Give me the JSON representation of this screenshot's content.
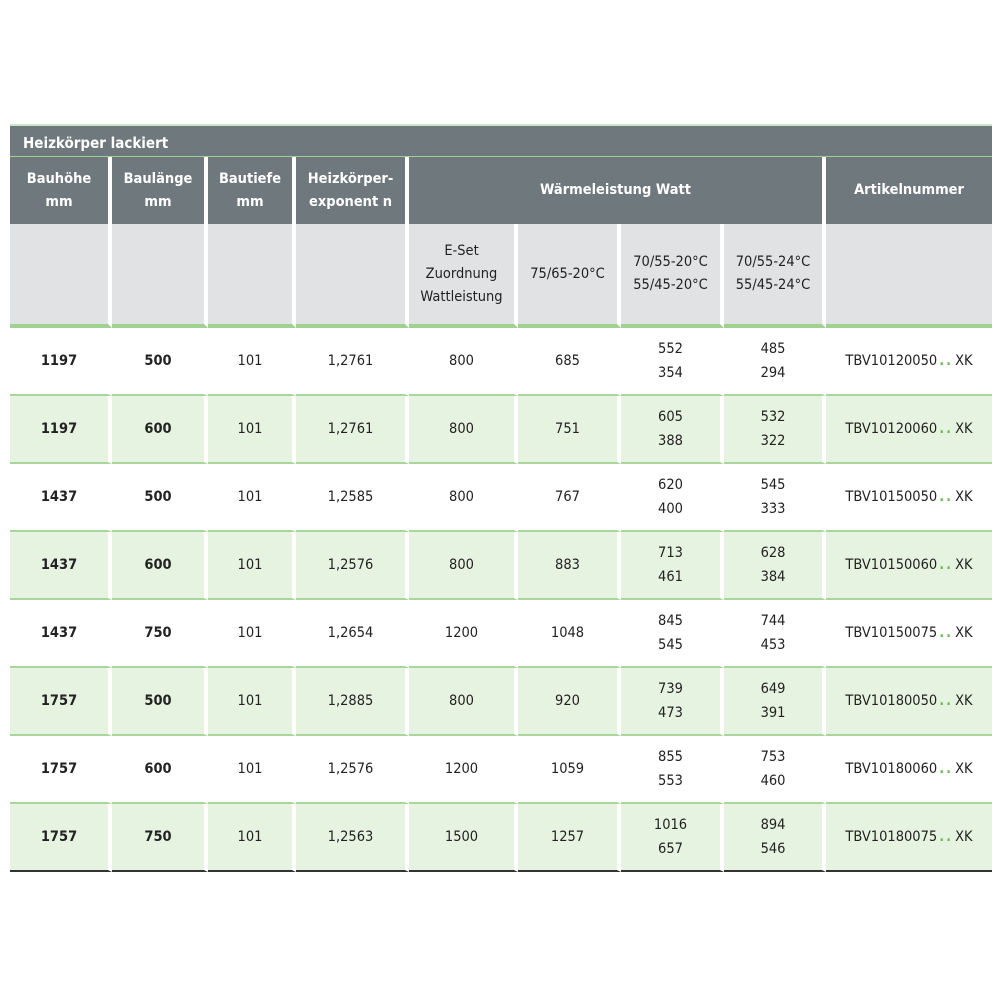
{
  "title": "Heizkörper lackiert",
  "headers": {
    "bauhoehe": [
      "Bauhöhe",
      "mm"
    ],
    "baulaenge": [
      "Baulänge",
      "mm"
    ],
    "bautiefe": [
      "Bautiefe",
      "mm"
    ],
    "exponent": [
      "Heizkörper-",
      "exponent n"
    ],
    "waermeleistung": "Wärmeleistung Watt",
    "artikelnummer": "Artikelnummer"
  },
  "subheaders": {
    "eset": [
      "E-Set",
      "Zuordnung",
      "Wattleistung"
    ],
    "t1": "75/65-20°C",
    "t2": [
      "70/55-20°C",
      "55/45-20°C"
    ],
    "t3": [
      "70/55-24°C",
      "55/45-24°C"
    ]
  },
  "colors": {
    "header": "#6f787c",
    "subheader": "#e1e2e4",
    "accent": "#9fd18f",
    "row_alt": "#e6f3e1",
    "dots": "#6cbf55"
  },
  "rows": [
    {
      "h": "1197",
      "l": "500",
      "t": "101",
      "n": "1,2761",
      "eset": "800",
      "w1": "685",
      "w2": [
        "552",
        "354"
      ],
      "w3": [
        "485",
        "294"
      ],
      "art": "TBV10120050",
      "suffix": "XK"
    },
    {
      "h": "1197",
      "l": "600",
      "t": "101",
      "n": "1,2761",
      "eset": "800",
      "w1": "751",
      "w2": [
        "605",
        "388"
      ],
      "w3": [
        "532",
        "322"
      ],
      "art": "TBV10120060",
      "suffix": "XK"
    },
    {
      "h": "1437",
      "l": "500",
      "t": "101",
      "n": "1,2585",
      "eset": "800",
      "w1": "767",
      "w2": [
        "620",
        "400"
      ],
      "w3": [
        "545",
        "333"
      ],
      "art": "TBV10150050",
      "suffix": "XK"
    },
    {
      "h": "1437",
      "l": "600",
      "t": "101",
      "n": "1,2576",
      "eset": "800",
      "w1": "883",
      "w2": [
        "713",
        "461"
      ],
      "w3": [
        "628",
        "384"
      ],
      "art": "TBV10150060",
      "suffix": "XK"
    },
    {
      "h": "1437",
      "l": "750",
      "t": "101",
      "n": "1,2654",
      "eset": "1200",
      "w1": "1048",
      "w2": [
        "845",
        "545"
      ],
      "w3": [
        "744",
        "453"
      ],
      "art": "TBV10150075",
      "suffix": "XK"
    },
    {
      "h": "1757",
      "l": "500",
      "t": "101",
      "n": "1,2885",
      "eset": "800",
      "w1": "920",
      "w2": [
        "739",
        "473"
      ],
      "w3": [
        "649",
        "391"
      ],
      "art": "TBV10180050",
      "suffix": "XK"
    },
    {
      "h": "1757",
      "l": "600",
      "t": "101",
      "n": "1,2576",
      "eset": "1200",
      "w1": "1059",
      "w2": [
        "855",
        "553"
      ],
      "w3": [
        "753",
        "460"
      ],
      "art": "TBV10180060",
      "suffix": "XK"
    },
    {
      "h": "1757",
      "l": "750",
      "t": "101",
      "n": "1,2563",
      "eset": "1500",
      "w1": "1257",
      "w2": [
        "1016",
        "657"
      ],
      "w3": [
        "894",
        "546"
      ],
      "art": "TBV10180075",
      "suffix": "XK"
    }
  ]
}
